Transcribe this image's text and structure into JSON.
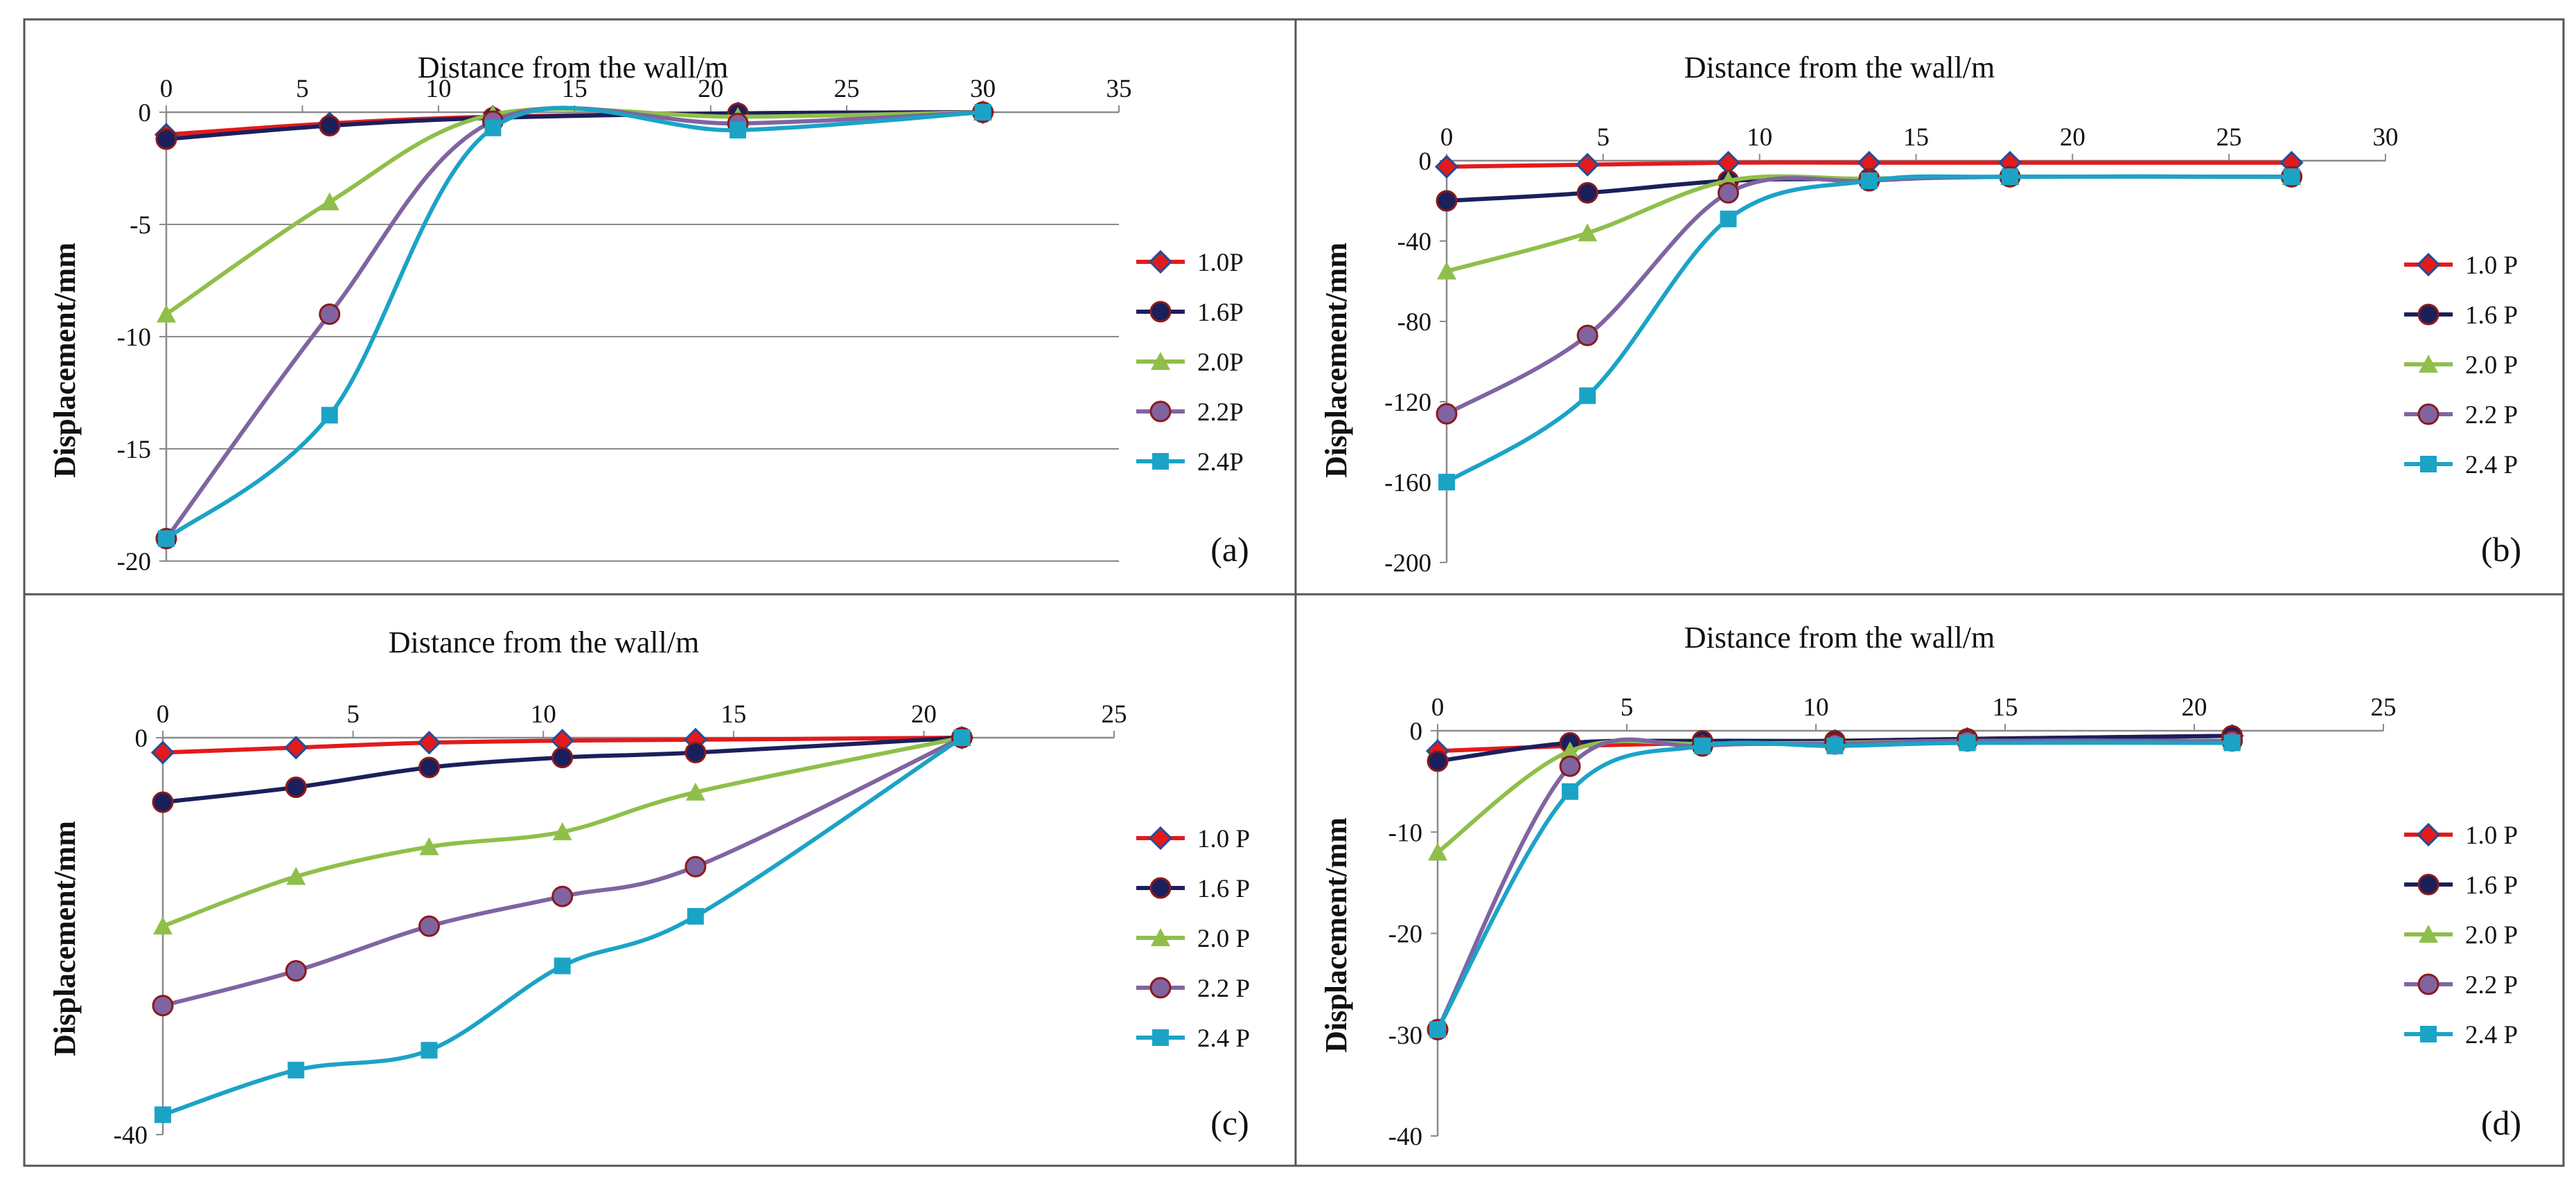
{
  "figure": {
    "panels": [
      "a",
      "b",
      "c",
      "d"
    ]
  },
  "chart_data": [
    {
      "type": "line",
      "panel_label": "(a)",
      "title": "Distance from the wall/m",
      "xlabel": "",
      "ylabel": "Displacement/mm",
      "xlim": [
        0,
        35
      ],
      "ylim": [
        -20,
        0
      ],
      "x_ticks": [
        0,
        5,
        10,
        15,
        20,
        25,
        30,
        35
      ],
      "y_ticks": [
        0,
        -5,
        -10,
        -15,
        -20
      ],
      "y_tick_labels": [
        "0",
        "-5",
        "-10",
        "-15",
        "-20"
      ],
      "grid": "horizontal",
      "legend_position": "right",
      "series": [
        {
          "name": "1.0P",
          "color": "#e31a1c",
          "marker": "diamond",
          "x": [
            0,
            6,
            12,
            21,
            30
          ],
          "y": [
            -1.0,
            -0.5,
            -0.2,
            -0.05,
            0
          ]
        },
        {
          "name": "1.6P",
          "color": "#1b1f5c",
          "marker": "circle",
          "x": [
            0,
            6,
            12,
            21,
            30
          ],
          "y": [
            -1.2,
            -0.6,
            -0.25,
            -0.05,
            0
          ]
        },
        {
          "name": "2.0P",
          "color": "#8fbf4a",
          "marker": "triangle",
          "x": [
            0,
            6,
            12,
            21,
            30
          ],
          "y": [
            -9.0,
            -4.0,
            -0.1,
            -0.2,
            0
          ]
        },
        {
          "name": "2.2P",
          "color": "#8064a2",
          "marker": "circle",
          "x": [
            0,
            6,
            12,
            21,
            30
          ],
          "y": [
            -19.0,
            -9.0,
            -0.4,
            -0.5,
            0
          ]
        },
        {
          "name": "2.4P",
          "color": "#1ba3c6",
          "marker": "square",
          "x": [
            0,
            6,
            12,
            21,
            30
          ],
          "y": [
            -19.0,
            -13.5,
            -0.7,
            -0.8,
            0
          ]
        }
      ]
    },
    {
      "type": "line",
      "panel_label": "(b)",
      "title": "Distance from the wall/m",
      "xlabel": "",
      "ylabel": "Displacement/mm",
      "xlim": [
        0,
        30
      ],
      "ylim": [
        -200,
        0
      ],
      "x_ticks": [
        0,
        5,
        10,
        15,
        20,
        25,
        30
      ],
      "y_ticks": [
        0,
        -40,
        -80,
        -120,
        -160,
        -200
      ],
      "y_tick_labels": [
        "0",
        "-40",
        "-80",
        "-120",
        "-160",
        "-200"
      ],
      "grid": "none",
      "legend_position": "right",
      "series": [
        {
          "name": "1.0 P",
          "color": "#e31a1c",
          "marker": "diamond",
          "x": [
            0,
            4.5,
            9,
            13.5,
            18,
            27
          ],
          "y": [
            -3,
            -2,
            -1,
            -1,
            -1,
            -1
          ]
        },
        {
          "name": "1.6 P",
          "color": "#1b1f5c",
          "marker": "circle",
          "x": [
            0,
            4.5,
            9,
            13.5,
            18,
            27
          ],
          "y": [
            -20,
            -16,
            -10,
            -9,
            -8,
            -8
          ]
        },
        {
          "name": "2.0 P",
          "color": "#8fbf4a",
          "marker": "triangle",
          "x": [
            0,
            4.5,
            9,
            13.5,
            18,
            27
          ],
          "y": [
            -55,
            -36,
            -10,
            -9,
            -8,
            -8
          ]
        },
        {
          "name": "2.2 P",
          "color": "#8064a2",
          "marker": "circle",
          "x": [
            0,
            4.5,
            9,
            13.5,
            18,
            27
          ],
          "y": [
            -126,
            -87,
            -16,
            -10,
            -8,
            -8
          ]
        },
        {
          "name": "2.4 P",
          "color": "#1ba3c6",
          "marker": "square",
          "x": [
            0,
            4.5,
            9,
            13.5,
            18,
            27
          ],
          "y": [
            -160,
            -117,
            -29,
            -10,
            -8,
            -8
          ]
        }
      ]
    },
    {
      "type": "line",
      "panel_label": "(c)",
      "title": "Distance from the wall/m",
      "xlabel": "",
      "ylabel": "Displacement/mm",
      "xlim": [
        0,
        25
      ],
      "ylim": [
        -40,
        0
      ],
      "x_ticks": [
        0,
        5,
        10,
        15,
        20,
        25
      ],
      "y_ticks": [
        0,
        -40
      ],
      "y_tick_labels": [
        "0",
        "-40"
      ],
      "grid": "none",
      "legend_position": "right",
      "series": [
        {
          "name": "1.0 P",
          "color": "#e31a1c",
          "marker": "diamond",
          "x": [
            0,
            3.5,
            7,
            10.5,
            14,
            21
          ],
          "y": [
            -1.5,
            -1.0,
            -0.5,
            -0.3,
            -0.2,
            0
          ]
        },
        {
          "name": "1.6 P",
          "color": "#1b1f5c",
          "marker": "circle",
          "x": [
            0,
            3.5,
            7,
            10.5,
            14,
            21
          ],
          "y": [
            -6.5,
            -5.0,
            -3.0,
            -2.0,
            -1.5,
            0
          ]
        },
        {
          "name": "2.0 P",
          "color": "#8fbf4a",
          "marker": "triangle",
          "x": [
            0,
            3.5,
            7,
            10.5,
            14,
            21
          ],
          "y": [
            -19.0,
            -14.0,
            -11.0,
            -9.5,
            -5.5,
            0
          ]
        },
        {
          "name": "2.2 P",
          "color": "#8064a2",
          "marker": "circle",
          "x": [
            0,
            3.5,
            7,
            10.5,
            14,
            21
          ],
          "y": [
            -27.0,
            -23.5,
            -19.0,
            -16.0,
            -13.0,
            0
          ]
        },
        {
          "name": "2.4 P",
          "color": "#1ba3c6",
          "marker": "square",
          "x": [
            0,
            3.5,
            7,
            10.5,
            14,
            21
          ],
          "y": [
            -38.0,
            -33.5,
            -31.5,
            -23.0,
            -18.0,
            0
          ]
        }
      ]
    },
    {
      "type": "line",
      "panel_label": "(d)",
      "title": "Distance from the wall/m",
      "xlabel": "",
      "ylabel": "Displacement/mm",
      "xlim": [
        0,
        25
      ],
      "ylim": [
        -40,
        0
      ],
      "x_ticks": [
        0,
        5,
        10,
        15,
        20,
        25
      ],
      "y_ticks": [
        0,
        -10,
        -20,
        -30,
        -40
      ],
      "y_tick_labels": [
        "0",
        "-10",
        "-20",
        "-30",
        "-40"
      ],
      "grid": "none",
      "legend_position": "right",
      "series": [
        {
          "name": "1.0 P",
          "color": "#e31a1c",
          "marker": "diamond",
          "x": [
            0,
            3.5,
            7,
            10.5,
            14,
            21
          ],
          "y": [
            -2.0,
            -1.5,
            -1.2,
            -1.0,
            -0.8,
            -0.5
          ]
        },
        {
          "name": "1.6 P",
          "color": "#1b1f5c",
          "marker": "circle",
          "x": [
            0,
            3.5,
            7,
            10.5,
            14,
            21
          ],
          "y": [
            -3.0,
            -1.2,
            -1.0,
            -1.0,
            -0.8,
            -0.5
          ]
        },
        {
          "name": "2.0 P",
          "color": "#8fbf4a",
          "marker": "triangle",
          "x": [
            0,
            3.5,
            7,
            10.5,
            14,
            21
          ],
          "y": [
            -12.0,
            -2.0,
            -1.3,
            -1.2,
            -1.0,
            -1.0
          ]
        },
        {
          "name": "2.2 P",
          "color": "#8064a2",
          "marker": "circle",
          "x": [
            0,
            3.5,
            7,
            10.5,
            14,
            21
          ],
          "y": [
            -29.5,
            -3.5,
            -1.5,
            -1.3,
            -1.0,
            -1.0
          ]
        },
        {
          "name": "2.4 P",
          "color": "#1ba3c6",
          "marker": "square",
          "x": [
            0,
            3.5,
            7,
            10.5,
            14,
            21
          ],
          "y": [
            -29.5,
            -6.0,
            -1.5,
            -1.5,
            -1.2,
            -1.2
          ]
        }
      ]
    }
  ]
}
